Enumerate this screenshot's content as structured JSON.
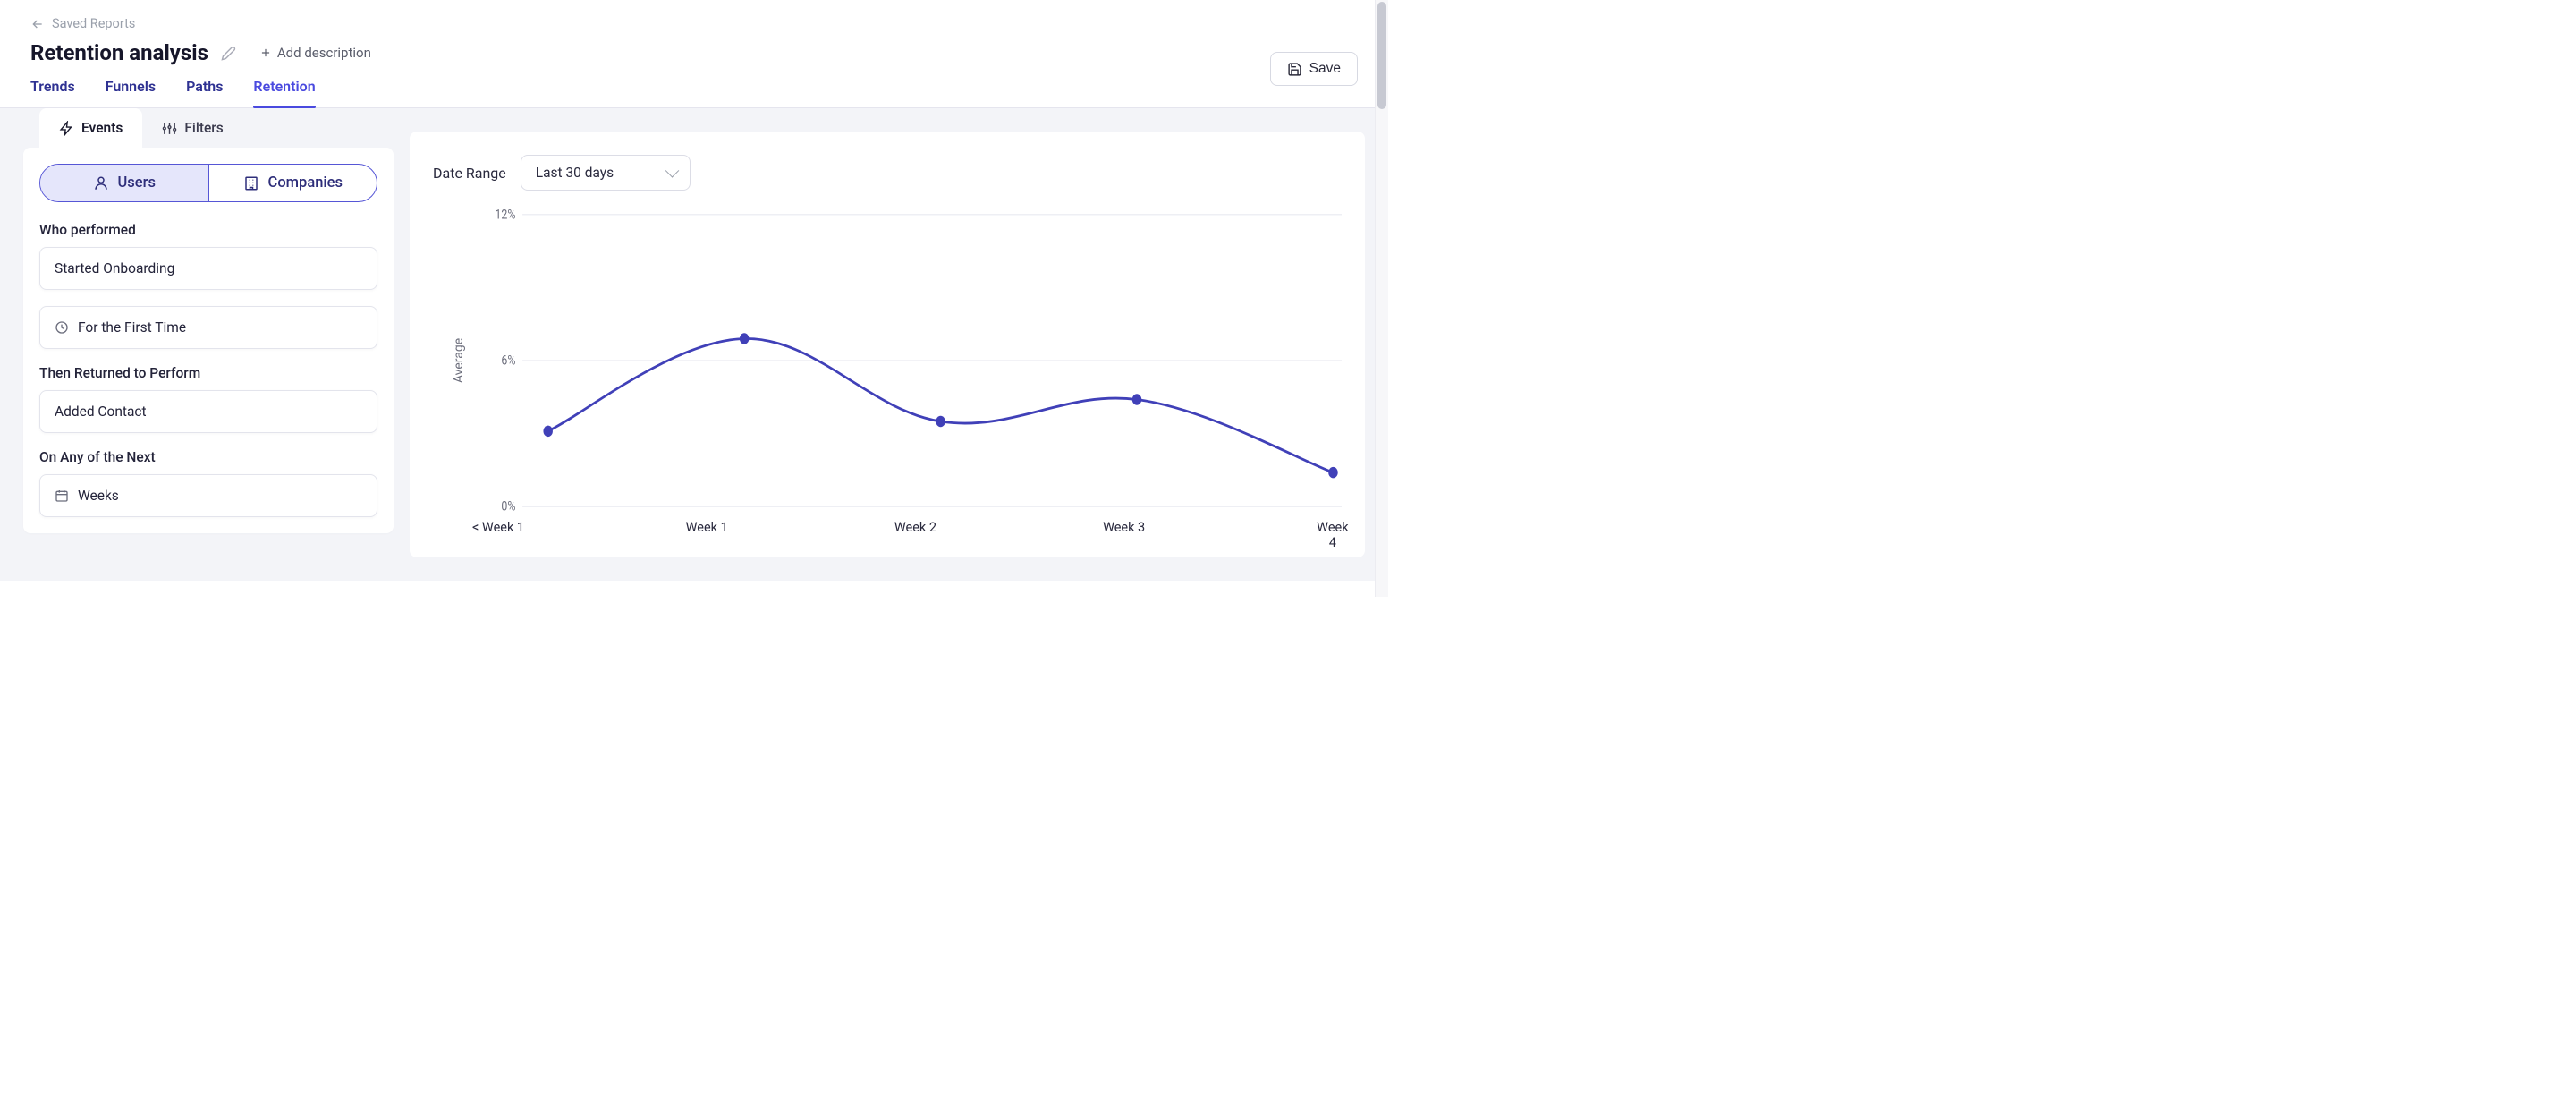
{
  "breadcrumb": {
    "label": "Saved Reports"
  },
  "page": {
    "title": "Retention analysis",
    "add_description": "Add description",
    "save_label": "Save"
  },
  "tabs": [
    {
      "label": "Trends",
      "active": false
    },
    {
      "label": "Funnels",
      "active": false
    },
    {
      "label": "Paths",
      "active": false
    },
    {
      "label": "Retention",
      "active": true
    }
  ],
  "sidebar": {
    "sub_tabs": {
      "events": "Events",
      "filters": "Filters"
    },
    "toggle": {
      "users": "Users",
      "companies": "Companies",
      "active": "users"
    },
    "who_performed_label": "Who performed",
    "who_performed_value": "Started Onboarding",
    "first_time_value": "For the First Time",
    "then_returned_label": "Then Returned to Perform",
    "then_returned_value": "Added Contact",
    "on_any_next_label": "On Any of the Next",
    "on_any_next_value": "Weeks"
  },
  "date_range": {
    "label": "Date Range",
    "value": "Last 30 days"
  },
  "chart": {
    "type": "line",
    "y_axis_label": "Average",
    "y_ticks": [
      {
        "v": 0,
        "label": "0%"
      },
      {
        "v": 6,
        "label": "6%"
      },
      {
        "v": 12,
        "label": "12%"
      }
    ],
    "y_min": 0,
    "y_max": 12,
    "x_labels": [
      "< Week 1",
      "Week 1",
      "Week 2",
      "Week 3",
      "Week 4"
    ],
    "series": {
      "color": "#4040b8",
      "line_width": 2.5,
      "marker_radius": 5.5,
      "marker_fill": "#4040b8",
      "values": [
        3.1,
        6.9,
        3.5,
        4.4,
        1.4
      ]
    },
    "gridline_color": "#e9eaf1",
    "background": "#ffffff"
  },
  "colors": {
    "accent": "#4a4adf",
    "accent_bg": "#e5e6fb",
    "border": "#d7d9e2",
    "text": "#1a1a2e",
    "muted": "#9aa0ab",
    "workspace_bg": "#f3f4f8"
  }
}
